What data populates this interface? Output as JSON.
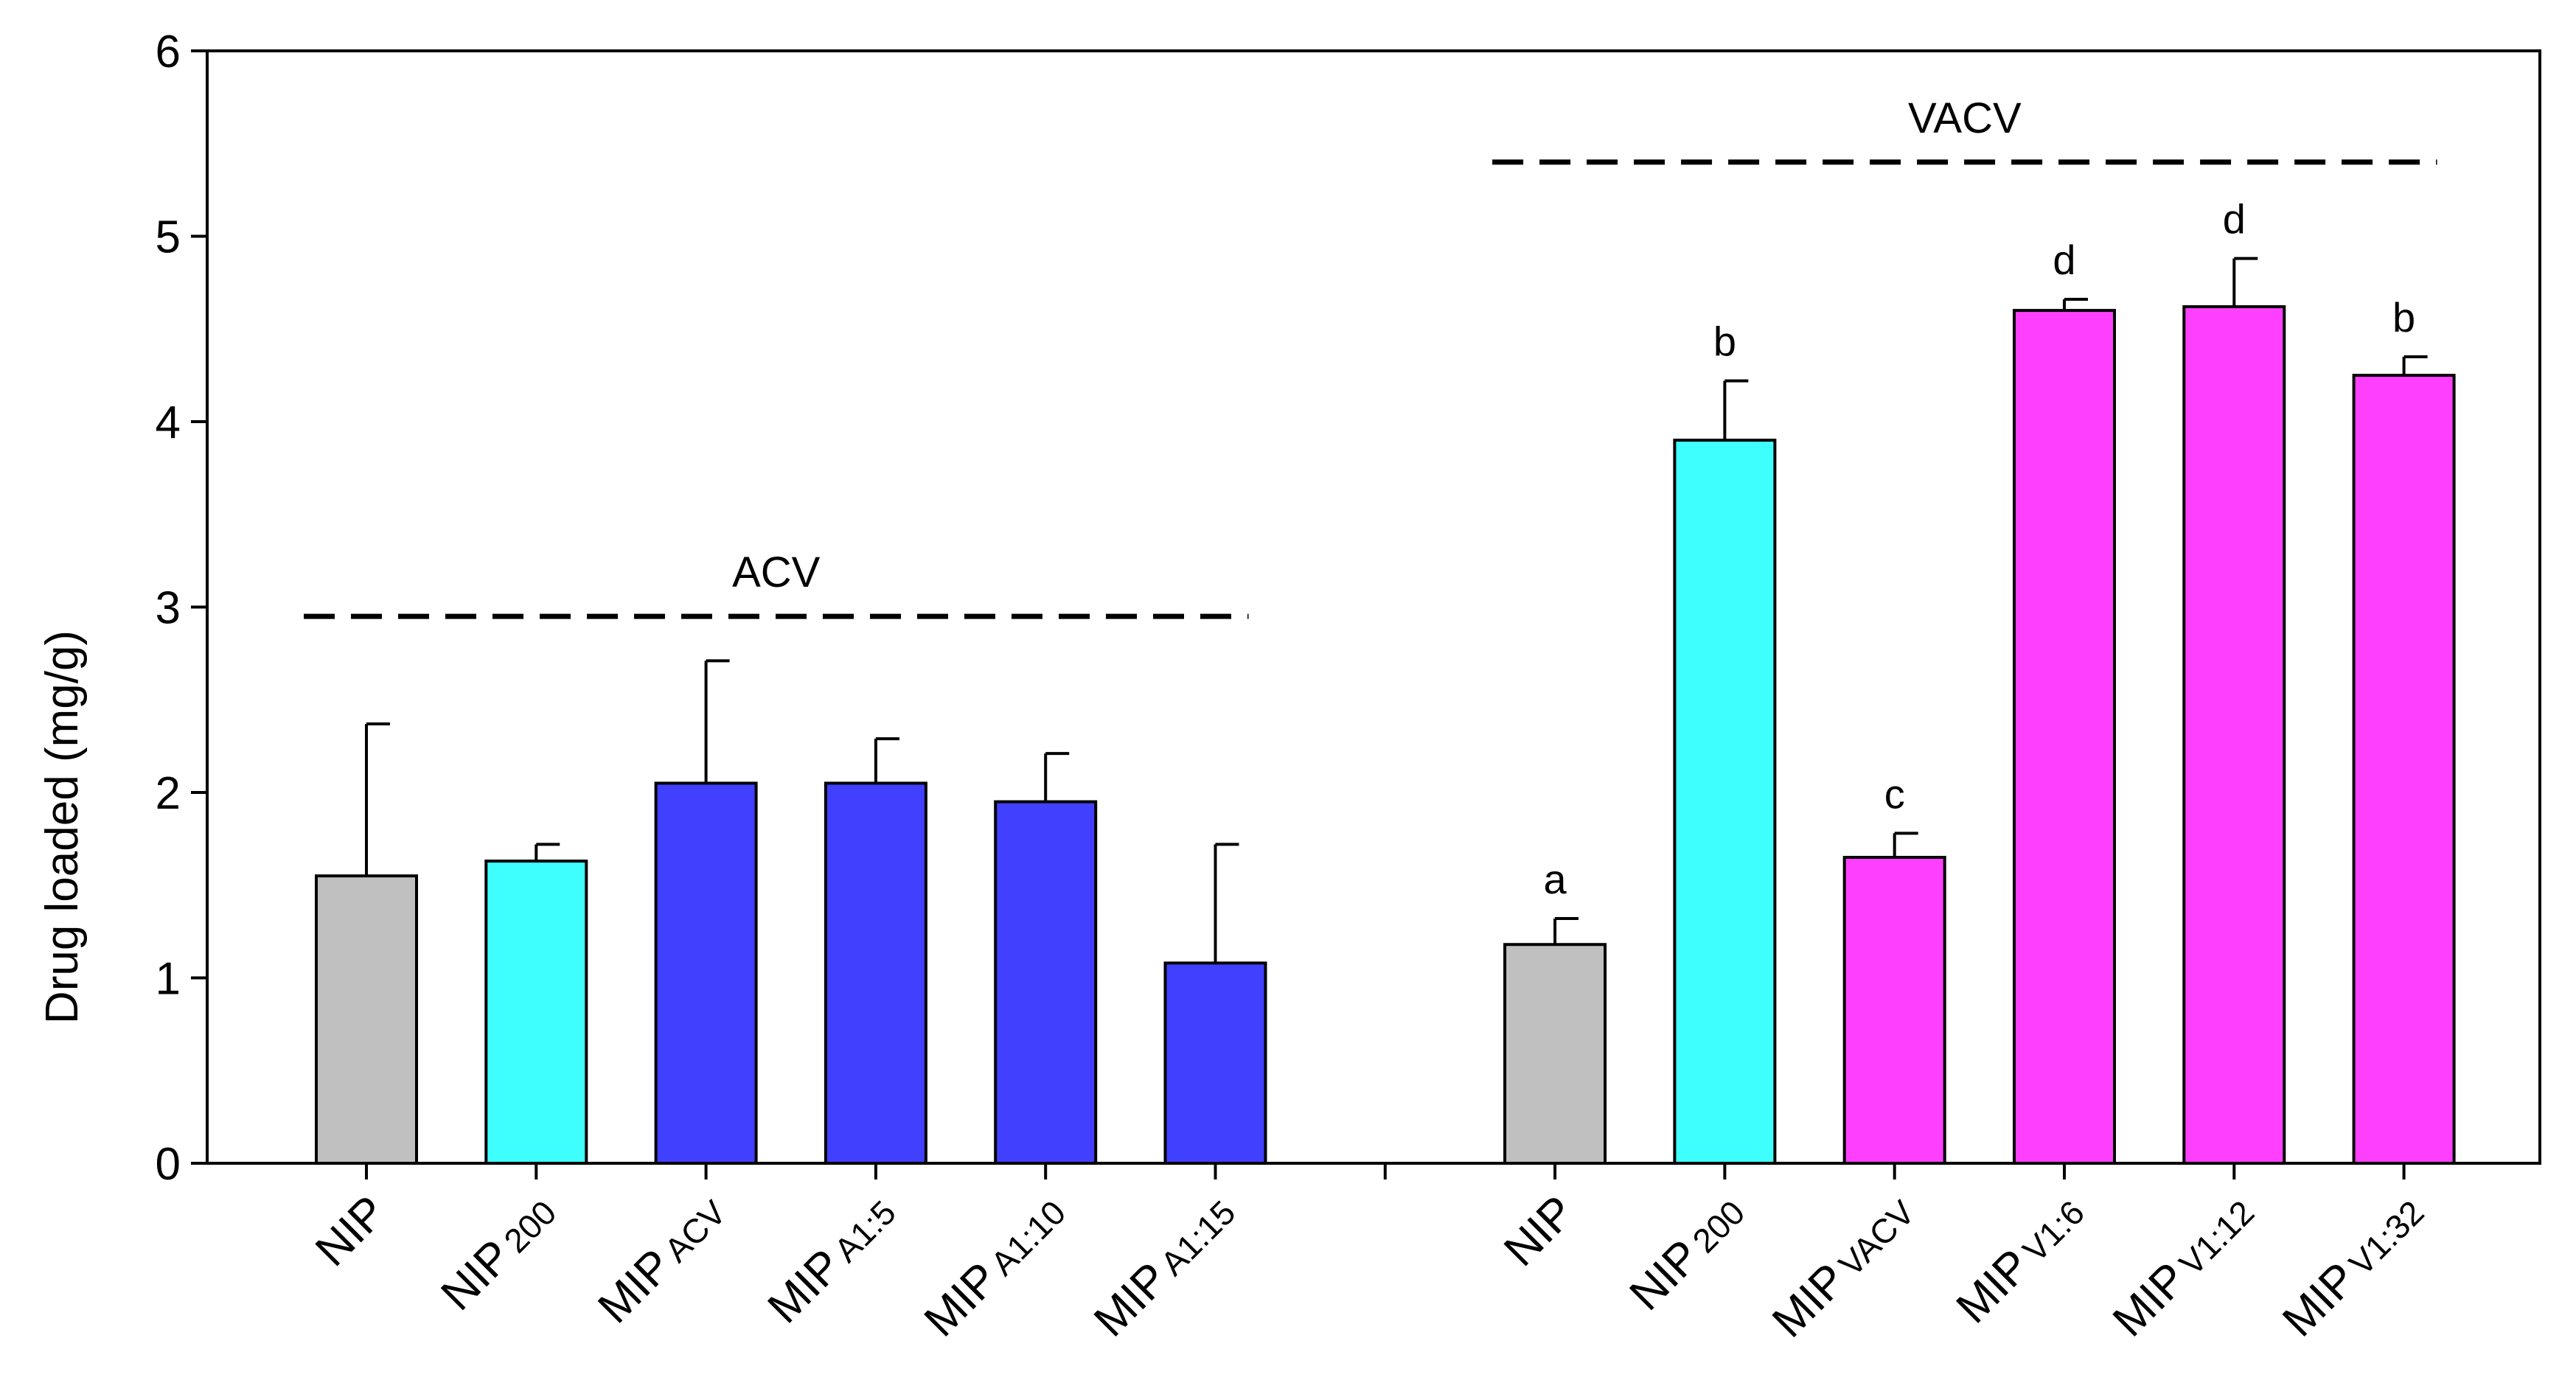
{
  "chart_data": {
    "type": "bar",
    "title": "",
    "xlabel": "",
    "ylabel": "Drug loaded (mg/g)",
    "ylim": [
      0,
      6
    ],
    "yticks": [
      0,
      1,
      2,
      3,
      4,
      5,
      6
    ],
    "grid": false,
    "legend": "none",
    "bar_colors": {
      "NIP": "#c0c0c0",
      "NIP200": "#3ffefe",
      "MIP_ACV": "#4040fe",
      "MIP_VACV": "#fe40fe"
    },
    "groups": [
      {
        "label": "ACV",
        "bars": [
          {
            "main": "NIP",
            "sub": "",
            "value": 1.55,
            "error": 0.82,
            "sig": "",
            "color_key": "NIP"
          },
          {
            "main": "NIP",
            "sub": "200",
            "value": 1.63,
            "error": 0.09,
            "sig": "",
            "color_key": "NIP200"
          },
          {
            "main": "MIP",
            "sub": "ACV",
            "value": 2.05,
            "error": 0.66,
            "sig": "",
            "color_key": "MIP_ACV"
          },
          {
            "main": "MIP",
            "sub": "A1:5",
            "value": 2.05,
            "error": 0.24,
            "sig": "",
            "color_key": "MIP_ACV"
          },
          {
            "main": "MIP",
            "sub": "A1:10",
            "value": 1.95,
            "error": 0.26,
            "sig": "",
            "color_key": "MIP_ACV"
          },
          {
            "main": "MIP",
            "sub": "A1:15",
            "value": 1.08,
            "error": 0.64,
            "sig": "",
            "color_key": "MIP_ACV"
          }
        ]
      },
      {
        "label": "VACV",
        "bars": [
          {
            "main": "NIP",
            "sub": "",
            "value": 1.18,
            "error": 0.14,
            "sig": "a",
            "color_key": "NIP"
          },
          {
            "main": "NIP",
            "sub": "200",
            "value": 3.9,
            "error": 0.32,
            "sig": "b",
            "color_key": "NIP200"
          },
          {
            "main": "MIP",
            "sub": "VACV",
            "value": 1.65,
            "error": 0.13,
            "sig": "c",
            "color_key": "MIP_VACV"
          },
          {
            "main": "MIP",
            "sub": "V1:6",
            "value": 4.6,
            "error": 0.06,
            "sig": "d",
            "color_key": "MIP_VACV"
          },
          {
            "main": "MIP",
            "sub": "V1:12",
            "value": 4.62,
            "error": 0.26,
            "sig": "d",
            "color_key": "MIP_VACV"
          },
          {
            "main": "MIP",
            "sub": "V1:32",
            "value": 4.25,
            "error": 0.1,
            "sig": "b",
            "color_key": "MIP_VACV"
          }
        ]
      }
    ],
    "group_line_level": {
      "ACV": 2.95,
      "VACV": 5.4
    }
  }
}
